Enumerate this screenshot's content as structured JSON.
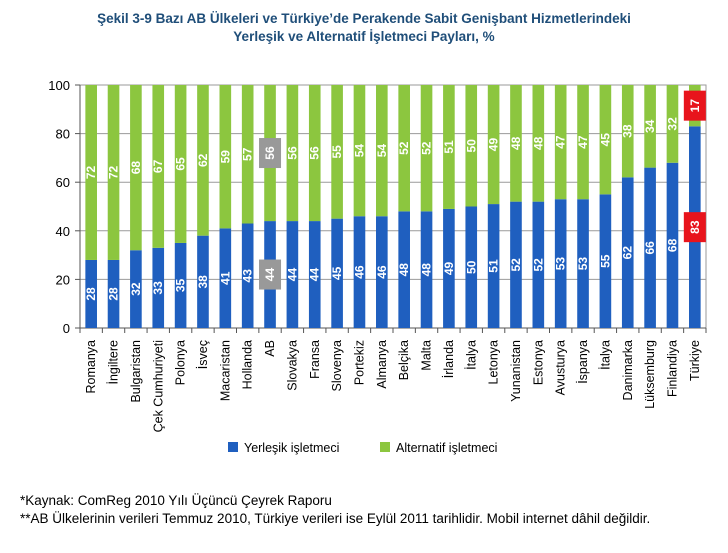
{
  "chart_data": {
    "type": "bar",
    "stacked": true,
    "title": "Şekil 3-9 Bazı AB Ülkeleri ve Türkiye’de Perakende Sabit Genişbant Hizmetlerindeki",
    "subtitle": "Yerleşik ve Alternatif İşletmeci Payları, %",
    "xlabel": "",
    "ylabel": "",
    "ylim": [
      0,
      100
    ],
    "yticks": [
      "0",
      "20",
      "40",
      "60",
      "80",
      "100"
    ],
    "grid": true,
    "legend_position": "bottom",
    "categories": [
      "Romanya",
      "İngiltere",
      "Bulgaristan",
      "Çek Cumhuriyeti",
      "Polonya",
      "İsveç",
      "Macaristan",
      "Hollanda",
      "AB",
      "Slovakya",
      "Fransa",
      "Slovenya",
      "Portekiz",
      "Almanya",
      "Belçika",
      "Malta",
      "İrlanda",
      "İtalya",
      "Letonya",
      "Yunanistan",
      "Estonya",
      "Avusturya",
      "İspanya",
      "İtalya",
      "Danimarka",
      "Lüksemburg",
      "Finlandiya",
      "Türkiye"
    ],
    "series": [
      {
        "name": "Yerleşik işletmeci",
        "color": "#1f5fbf",
        "values": [
          28,
          28,
          32,
          33,
          35,
          38,
          41,
          43,
          44,
          44,
          44,
          45,
          46,
          46,
          48,
          48,
          49,
          50,
          51,
          52,
          52,
          53,
          53,
          55,
          62,
          66,
          68,
          83
        ],
        "labels": [
          "28",
          "28",
          "32",
          "33",
          "35",
          "38",
          "41",
          "43",
          "44",
          "44",
          "44",
          "45",
          "46",
          "46",
          "48",
          "48",
          "49",
          "50",
          "51",
          "52",
          "52",
          "53",
          "53",
          "55",
          "62",
          "66",
          "68",
          "83"
        ]
      },
      {
        "name": "Alternatif işletmeci",
        "color": "#8cc63f",
        "values": [
          72,
          72,
          68,
          67,
          65,
          62,
          59,
          57,
          56,
          56,
          56,
          55,
          54,
          54,
          52,
          52,
          51,
          50,
          49,
          48,
          48,
          47,
          47,
          45,
          38,
          34,
          32,
          17
        ],
        "labels": [
          "72",
          "72",
          "68",
          "67",
          "65",
          "62",
          "59",
          "57",
          "56",
          "56",
          "56",
          "55",
          "54",
          "54",
          "52",
          "52",
          "51",
          "50",
          "49",
          "48",
          "48",
          "47",
          "47",
          "45",
          "38",
          "34",
          "32",
          "17"
        ]
      }
    ],
    "highlight": {
      "AB": "#999999",
      "Türkiye": "#e8141c"
    }
  },
  "footnotes": {
    "source": "*Kaynak: ComReg 2010 Yılı Üçüncü Çeyrek Raporu",
    "note": "**AB Ülkelerinin verileri Temmuz 2010, Türkiye verileri ise Eylül 2011 tarihlidir. Mobil internet dâhil değildir."
  }
}
